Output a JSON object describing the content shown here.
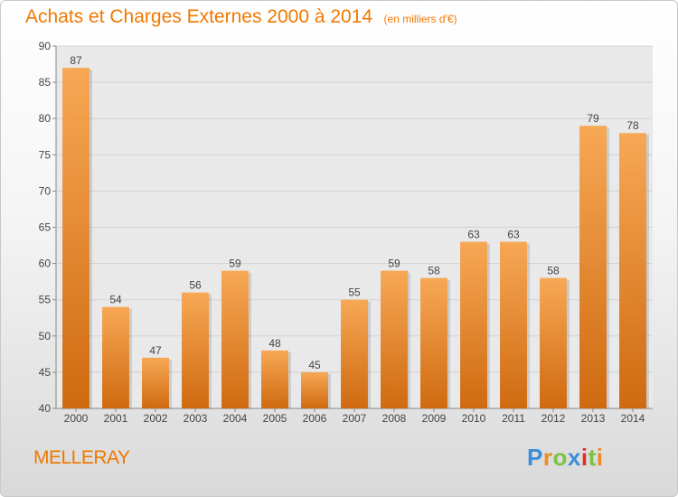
{
  "header": {
    "title": "Achats et Charges Externes 2000 à 2014",
    "subtitle": "(en milliers d'€)"
  },
  "footer": {
    "commune": "MELLERAY",
    "logo_text": "Proxiti",
    "logo_colors": [
      "#3a8fd8",
      "#f08a1a",
      "#7cc242",
      "#3a8fd8",
      "#e0302a",
      "#7cc242",
      "#f08a1a"
    ]
  },
  "chart_data": {
    "type": "bar",
    "categories": [
      "2000",
      "2001",
      "2002",
      "2003",
      "2004",
      "2005",
      "2006",
      "2007",
      "2008",
      "2009",
      "2010",
      "2011",
      "2012",
      "2013",
      "2014"
    ],
    "values": [
      87,
      54,
      47,
      56,
      59,
      48,
      45,
      55,
      59,
      58,
      63,
      63,
      58,
      79,
      78
    ],
    "ylim": [
      40,
      90
    ],
    "yticks": [
      40,
      45,
      50,
      55,
      60,
      65,
      70,
      75,
      80,
      85,
      90
    ],
    "grid": true,
    "bar_color": "#f0963c",
    "bar_color_light": "#f7a855",
    "bar_color_dark": "#cf6a10",
    "grid_color": "#d2d2d2",
    "plot_bg": "#e9e9e9"
  }
}
